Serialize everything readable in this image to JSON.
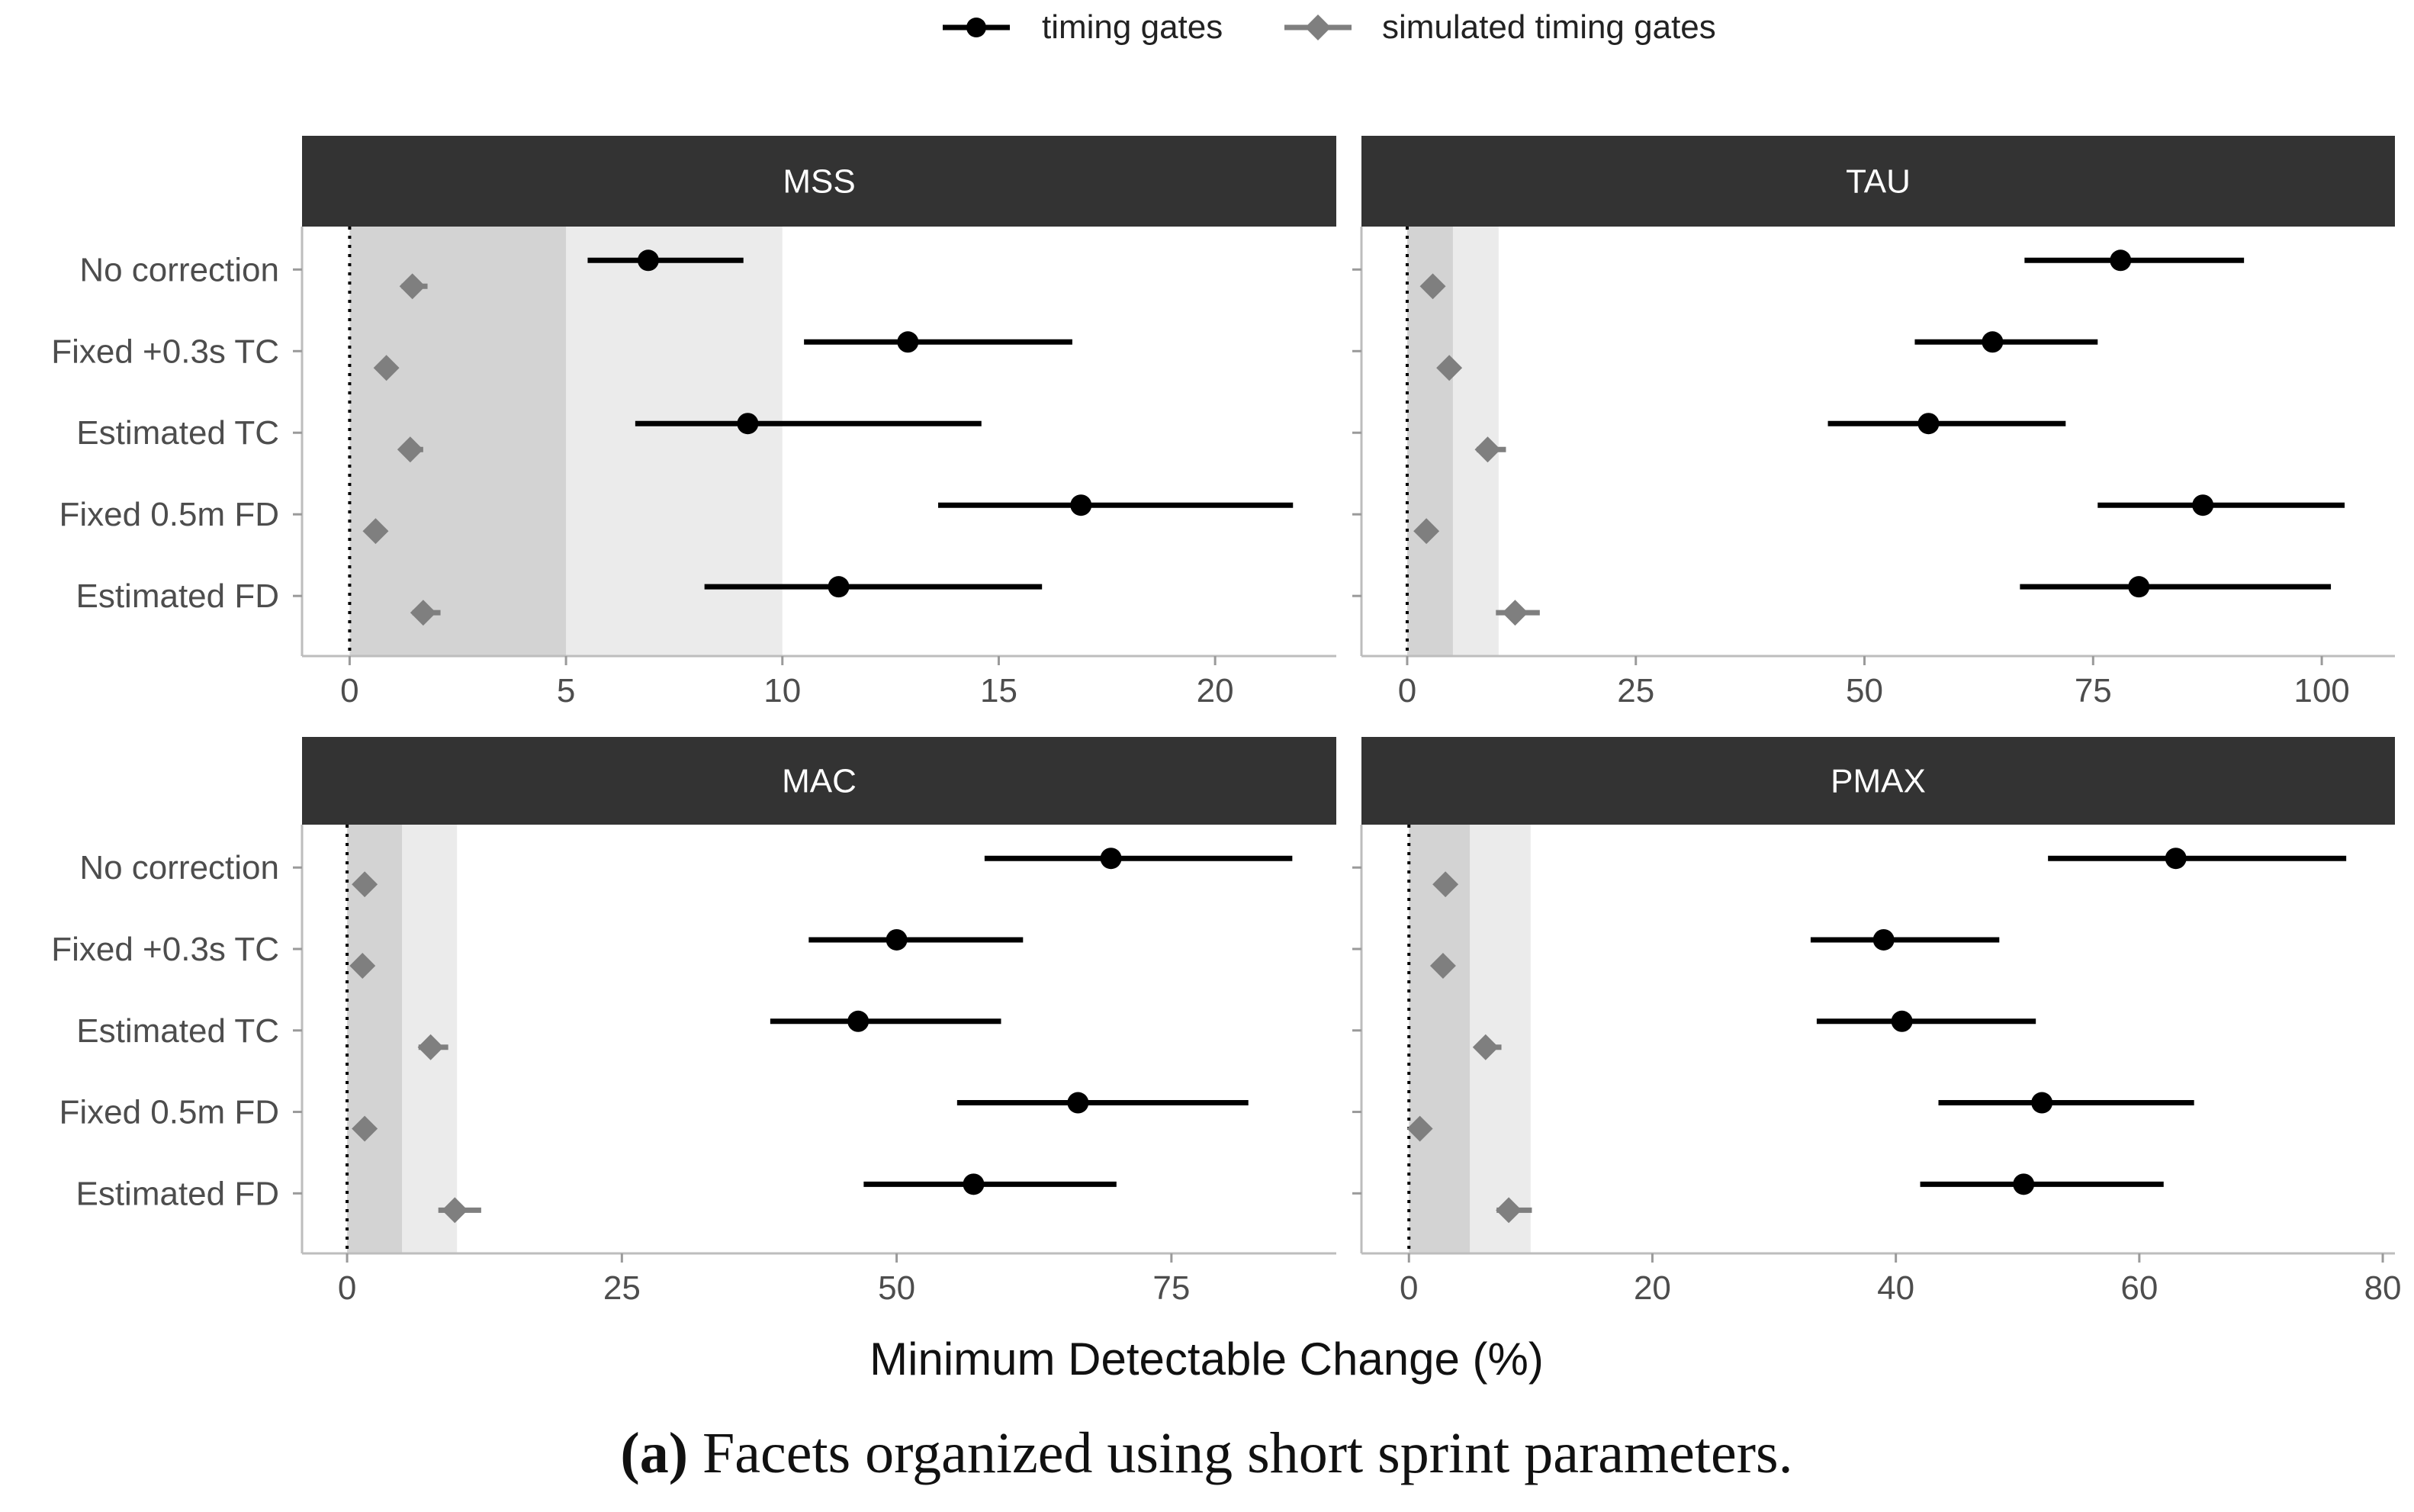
{
  "chart_data": {
    "type": "scatter",
    "subtype": "faceted-forest-plot",
    "caption_label": "(a)",
    "caption_text": " Facets organized using short sprint parameters.",
    "xlabel": "Minimum Detectable Change (%)",
    "legend_position": "top-center",
    "legend": [
      {
        "name": "timing gates",
        "marker": "circle",
        "color": "#000000"
      },
      {
        "name": "simulated timing gates",
        "marker": "diamond",
        "color": "#7f7f7f"
      }
    ],
    "categories": [
      "No correction",
      "Fixed +0.3s TC",
      "Estimated TC",
      "Fixed 0.5m FD",
      "Estimated FD"
    ],
    "reference_line": 0,
    "facets": [
      {
        "title": "MSS",
        "xlim": [
          -1.1,
          22.8
        ],
        "xticks": [
          0,
          5,
          10,
          15,
          20
        ],
        "bands": [
          [
            0,
            5
          ],
          [
            5,
            10
          ]
        ],
        "series": [
          {
            "name": "timing gates",
            "points": [
              [
                6.9,
                5.5,
                9.1
              ],
              [
                12.9,
                10.5,
                16.7
              ],
              [
                9.2,
                6.6,
                14.6
              ],
              [
                16.9,
                13.6,
                21.8
              ],
              [
                11.3,
                8.2,
                16.0
              ]
            ]
          },
          {
            "name": "simulated timing gates",
            "points": [
              [
                1.45,
                1.2,
                1.8
              ],
              [
                0.85,
                0.7,
                1.0
              ],
              [
                1.4,
                1.2,
                1.7
              ],
              [
                0.6,
                0.5,
                0.75
              ],
              [
                1.7,
                1.45,
                2.1
              ]
            ]
          }
        ]
      },
      {
        "title": "TAU",
        "xlim": [
          -5,
          108
        ],
        "xticks": [
          0,
          25,
          50,
          75,
          100
        ],
        "bands": [
          [
            0,
            5
          ],
          [
            5,
            10
          ]
        ],
        "series": [
          {
            "name": "timing gates",
            "points": [
              [
                78,
                67.5,
                91.5
              ],
              [
                64,
                55.5,
                75.5
              ],
              [
                57,
                46,
                72
              ],
              [
                87,
                75.5,
                102.5
              ],
              [
                80,
                67,
                101
              ]
            ]
          },
          {
            "name": "simulated timing gates",
            "points": [
              [
                2.8,
                2.3,
                3.3
              ],
              [
                4.6,
                4.2,
                5.1
              ],
              [
                8.8,
                7.6,
                10.8
              ],
              [
                2.1,
                1.7,
                2.6
              ],
              [
                11.8,
                9.7,
                14.5
              ]
            ]
          }
        ]
      },
      {
        "title": "MAC",
        "xlim": [
          -4.1,
          90
        ],
        "xticks": [
          0,
          25,
          50,
          75
        ],
        "bands": [
          [
            0,
            5
          ],
          [
            5,
            10
          ]
        ],
        "series": [
          {
            "name": "timing gates",
            "points": [
              [
                69.5,
                58,
                86
              ],
              [
                50,
                42,
                61.5
              ],
              [
                46.5,
                38.5,
                59.5
              ],
              [
                66.5,
                55.5,
                82
              ],
              [
                57,
                47,
                70
              ]
            ]
          },
          {
            "name": "simulated timing gates",
            "points": [
              [
                1.6,
                1.3,
                2.0
              ],
              [
                1.4,
                1.2,
                1.7
              ],
              [
                7.6,
                6.5,
                9.2
              ],
              [
                1.6,
                1.3,
                2.0
              ],
              [
                9.8,
                8.3,
                12.2
              ]
            ]
          }
        ]
      },
      {
        "title": "PMAX",
        "xlim": [
          -3.9,
          81
        ],
        "xticks": [
          0,
          20,
          40,
          60,
          80
        ],
        "bands": [
          [
            0,
            5
          ],
          [
            5,
            10
          ]
        ],
        "series": [
          {
            "name": "timing gates",
            "points": [
              [
                63,
                52.5,
                77
              ],
              [
                39,
                33,
                48.5
              ],
              [
                40.5,
                33.5,
                51.5
              ],
              [
                52,
                43.5,
                64.5
              ],
              [
                50.5,
                42,
                62
              ]
            ]
          },
          {
            "name": "simulated timing gates",
            "points": [
              [
                3.0,
                2.5,
                3.8
              ],
              [
                2.8,
                2.3,
                3.4
              ],
              [
                6.3,
                5.6,
                7.6
              ],
              [
                0.9,
                0.7,
                1.1
              ],
              [
                8.2,
                7.2,
                10.1
              ]
            ]
          }
        ]
      }
    ]
  }
}
